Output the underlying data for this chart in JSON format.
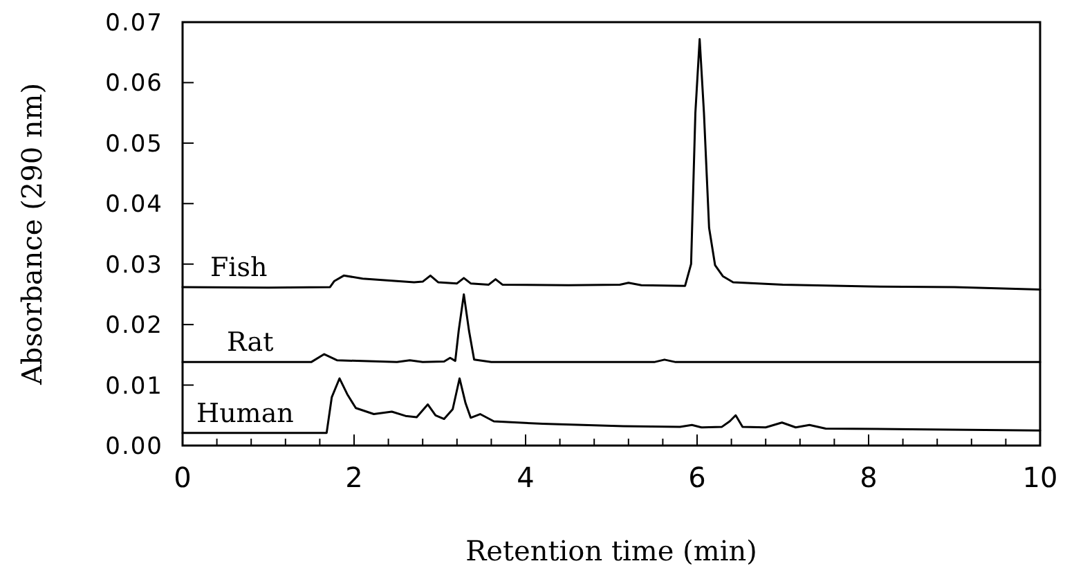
{
  "chart_data": {
    "type": "line",
    "xlabel": "Retention time (min)",
    "ylabel": "Absorbance (290 nm)",
    "xlim": [
      0,
      10
    ],
    "ylim": [
      0,
      0.07
    ],
    "xticks": [
      0,
      {
        "value": 0.4,
        "label": null
      },
      {
        "value": 0.8,
        "label": null
      },
      {
        "value": 1.2,
        "label": null
      },
      {
        "value": 1.6,
        "label": null
      },
      2,
      {
        "value": 2.4,
        "label": null
      },
      {
        "value": 2.8,
        "label": null
      },
      {
        "value": 3.2,
        "label": null
      },
      {
        "value": 3.6,
        "label": null
      },
      4,
      {
        "value": 4.4,
        "label": null
      },
      {
        "value": 4.8,
        "label": null
      },
      {
        "value": 5.2,
        "label": null
      },
      {
        "value": 5.6,
        "label": null
      },
      6,
      {
        "value": 6.4,
        "label": null
      },
      {
        "value": 6.8,
        "label": null
      },
      {
        "value": 7.2,
        "label": null
      },
      {
        "value": 7.6,
        "label": null
      },
      8,
      {
        "value": 8.4,
        "label": null
      },
      {
        "value": 8.8,
        "label": null
      },
      {
        "value": 9.2,
        "label": null
      },
      {
        "value": 9.6,
        "label": null
      },
      10
    ],
    "yticks": [
      {
        "value": 0,
        "label": "0.00"
      },
      {
        "value": 0.01,
        "label": "0.01"
      },
      {
        "value": 0.02,
        "label": "0.02"
      },
      {
        "value": 0.03,
        "label": "0.03"
      },
      {
        "value": 0.04,
        "label": "0.04"
      },
      {
        "value": 0.05,
        "label": "0.05"
      },
      {
        "value": 0.06,
        "label": "0.06"
      },
      {
        "value": 0.07,
        "label": "0.07"
      }
    ],
    "grid": false,
    "legend": false,
    "marker": "none",
    "line_style": "solid",
    "series": [
      {
        "name": "Fish",
        "color": "#000000",
        "x": [
          0,
          1.0,
          1.72,
          1.77,
          1.88,
          2.1,
          2.7,
          2.8,
          2.89,
          2.98,
          3.2,
          3.28,
          3.36,
          3.57,
          3.65,
          3.73,
          4.5,
          5.1,
          5.2,
          5.35,
          5.86,
          5.93,
          5.98,
          6.03,
          6.08,
          6.14,
          6.21,
          6.3,
          6.42,
          7.0,
          8.0,
          9.0,
          10.0
        ],
        "values": [
          0.0262,
          0.0261,
          0.0262,
          0.0272,
          0.0281,
          0.0276,
          0.027,
          0.0271,
          0.0281,
          0.027,
          0.0268,
          0.0277,
          0.0268,
          0.0266,
          0.0275,
          0.0266,
          0.0265,
          0.0266,
          0.0269,
          0.0265,
          0.0264,
          0.03,
          0.055,
          0.0672,
          0.055,
          0.036,
          0.0298,
          0.028,
          0.027,
          0.0266,
          0.0263,
          0.0262,
          0.0258
        ]
      },
      {
        "name": "Rat",
        "color": "#000000",
        "x": [
          0,
          1.5,
          1.65,
          1.8,
          2.5,
          2.65,
          2.8,
          3.05,
          3.12,
          3.18,
          3.22,
          3.28,
          3.34,
          3.4,
          3.6,
          4.5,
          5.5,
          5.62,
          5.75,
          7.0,
          8.5,
          10.0
        ],
        "values": [
          0.0138,
          0.0138,
          0.0151,
          0.0141,
          0.0138,
          0.0141,
          0.0138,
          0.0139,
          0.0145,
          0.014,
          0.019,
          0.025,
          0.019,
          0.0142,
          0.0138,
          0.0138,
          0.0138,
          0.0142,
          0.0138,
          0.0138,
          0.0138,
          0.0138
        ]
      },
      {
        "name": "Human",
        "color": "#000000",
        "x": [
          0,
          1.0,
          1.68,
          1.74,
          1.83,
          1.92,
          2.02,
          2.23,
          2.44,
          2.6,
          2.73,
          2.86,
          2.95,
          3.05,
          3.15,
          3.23,
          3.3,
          3.36,
          3.47,
          3.63,
          4.2,
          5.14,
          5.8,
          5.94,
          6.05,
          6.29,
          6.38,
          6.45,
          6.53,
          6.8,
          6.99,
          7.15,
          7.31,
          7.5,
          8.5,
          10.0
        ],
        "values": [
          0.0021,
          0.0021,
          0.0021,
          0.008,
          0.0111,
          0.0085,
          0.0062,
          0.0052,
          0.0056,
          0.0049,
          0.0047,
          0.0068,
          0.005,
          0.0044,
          0.006,
          0.0111,
          0.007,
          0.0046,
          0.0052,
          0.004,
          0.0036,
          0.0032,
          0.0031,
          0.0034,
          0.003,
          0.0031,
          0.004,
          0.005,
          0.0031,
          0.003,
          0.0038,
          0.003,
          0.0034,
          0.0028,
          0.0027,
          0.0025
        ]
      }
    ]
  }
}
